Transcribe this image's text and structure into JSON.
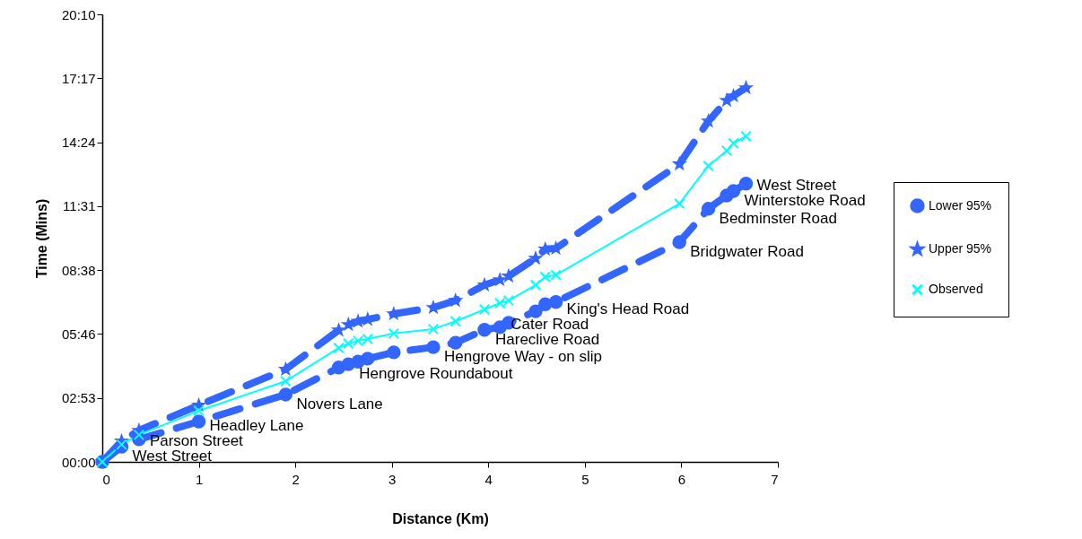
{
  "chart_data": {
    "type": "line",
    "xlabel": "Distance (Km)",
    "ylabel": "Time (Mins)",
    "x": [
      0,
      0.2,
      0.38,
      1.0,
      1.9,
      2.45,
      2.55,
      2.65,
      2.75,
      3.02,
      3.43,
      3.66,
      3.96,
      4.12,
      4.21,
      4.49,
      4.59,
      4.7,
      5.98,
      6.28,
      6.47,
      6.54,
      6.67
    ],
    "series": [
      {
        "name": "Lower 95%",
        "color": "#3366ff",
        "marker": "circle",
        "line_style": "dashed",
        "values": [
          0,
          41,
          61,
          109,
          182,
          255,
          264,
          271,
          279,
          296,
          310,
          322,
          357,
          364,
          376,
          407,
          426,
          432,
          594,
          684,
          720,
          732,
          752
        ]
      },
      {
        "name": "Upper 95%",
        "color": "#3366ff",
        "marker": "star",
        "line_style": "dashed",
        "values": [
          0,
          56,
          85,
          153,
          250,
          356,
          371,
          380,
          385,
          400,
          417,
          436,
          478,
          492,
          502,
          550,
          575,
          577,
          805,
          921,
          977,
          989,
          1011
        ]
      },
      {
        "name": "Observed",
        "color": "#00ffff",
        "marker": "cross",
        "line_style": "solid",
        "values": [
          0,
          47,
          73,
          138,
          218,
          308,
          320,
          327,
          332,
          347,
          359,
          380,
          412,
          429,
          436,
          478,
          500,
          505,
          698,
          800,
          841,
          861,
          880
        ]
      }
    ],
    "xlim": [
      0,
      7
    ],
    "xticks": [
      0,
      1,
      2,
      3,
      4,
      5,
      6,
      7
    ],
    "ylim": [
      0,
      1209.6
    ],
    "yticks": [
      {
        "value": 0,
        "label": "00:00"
      },
      {
        "value": 172.8,
        "label": "02:53"
      },
      {
        "value": 345.6,
        "label": "05:46"
      },
      {
        "value": 518.4,
        "label": "08:38"
      },
      {
        "value": 691.2,
        "label": "11:31"
      },
      {
        "value": 864,
        "label": "14:24"
      },
      {
        "value": 1036.8,
        "label": "17:17"
      },
      {
        "value": 1209.6,
        "label": "20:10"
      }
    ],
    "grid": false,
    "legend": "right",
    "annotations": [
      {
        "text": "West Street",
        "x": 0.2,
        "y": 41
      },
      {
        "text": "Parson Street",
        "x": 0.38,
        "y": 61
      },
      {
        "text": "Headley Lane",
        "x": 1.0,
        "y": 109
      },
      {
        "text": "Novers Lane",
        "x": 1.9,
        "y": 182
      },
      {
        "text": "Hengrove Roundabout",
        "x": 2.55,
        "y": 264
      },
      {
        "text": "Hengrove Way - on slip",
        "x": 3.43,
        "y": 310
      },
      {
        "text": "Hareclive Road",
        "x": 3.96,
        "y": 357
      },
      {
        "text": "Cater Road",
        "x": 4.12,
        "y": 364
      },
      {
        "text": "King's Head Road",
        "x": 4.7,
        "y": 432
      },
      {
        "text": "Bridgwater Road",
        "x": 5.98,
        "y": 594
      },
      {
        "text": "Bedminster Road",
        "x": 6.28,
        "y": 684
      },
      {
        "text": "Winterstoke Road",
        "x": 6.54,
        "y": 732
      },
      {
        "text": "West Street",
        "x": 6.67,
        "y": 752
      }
    ]
  }
}
